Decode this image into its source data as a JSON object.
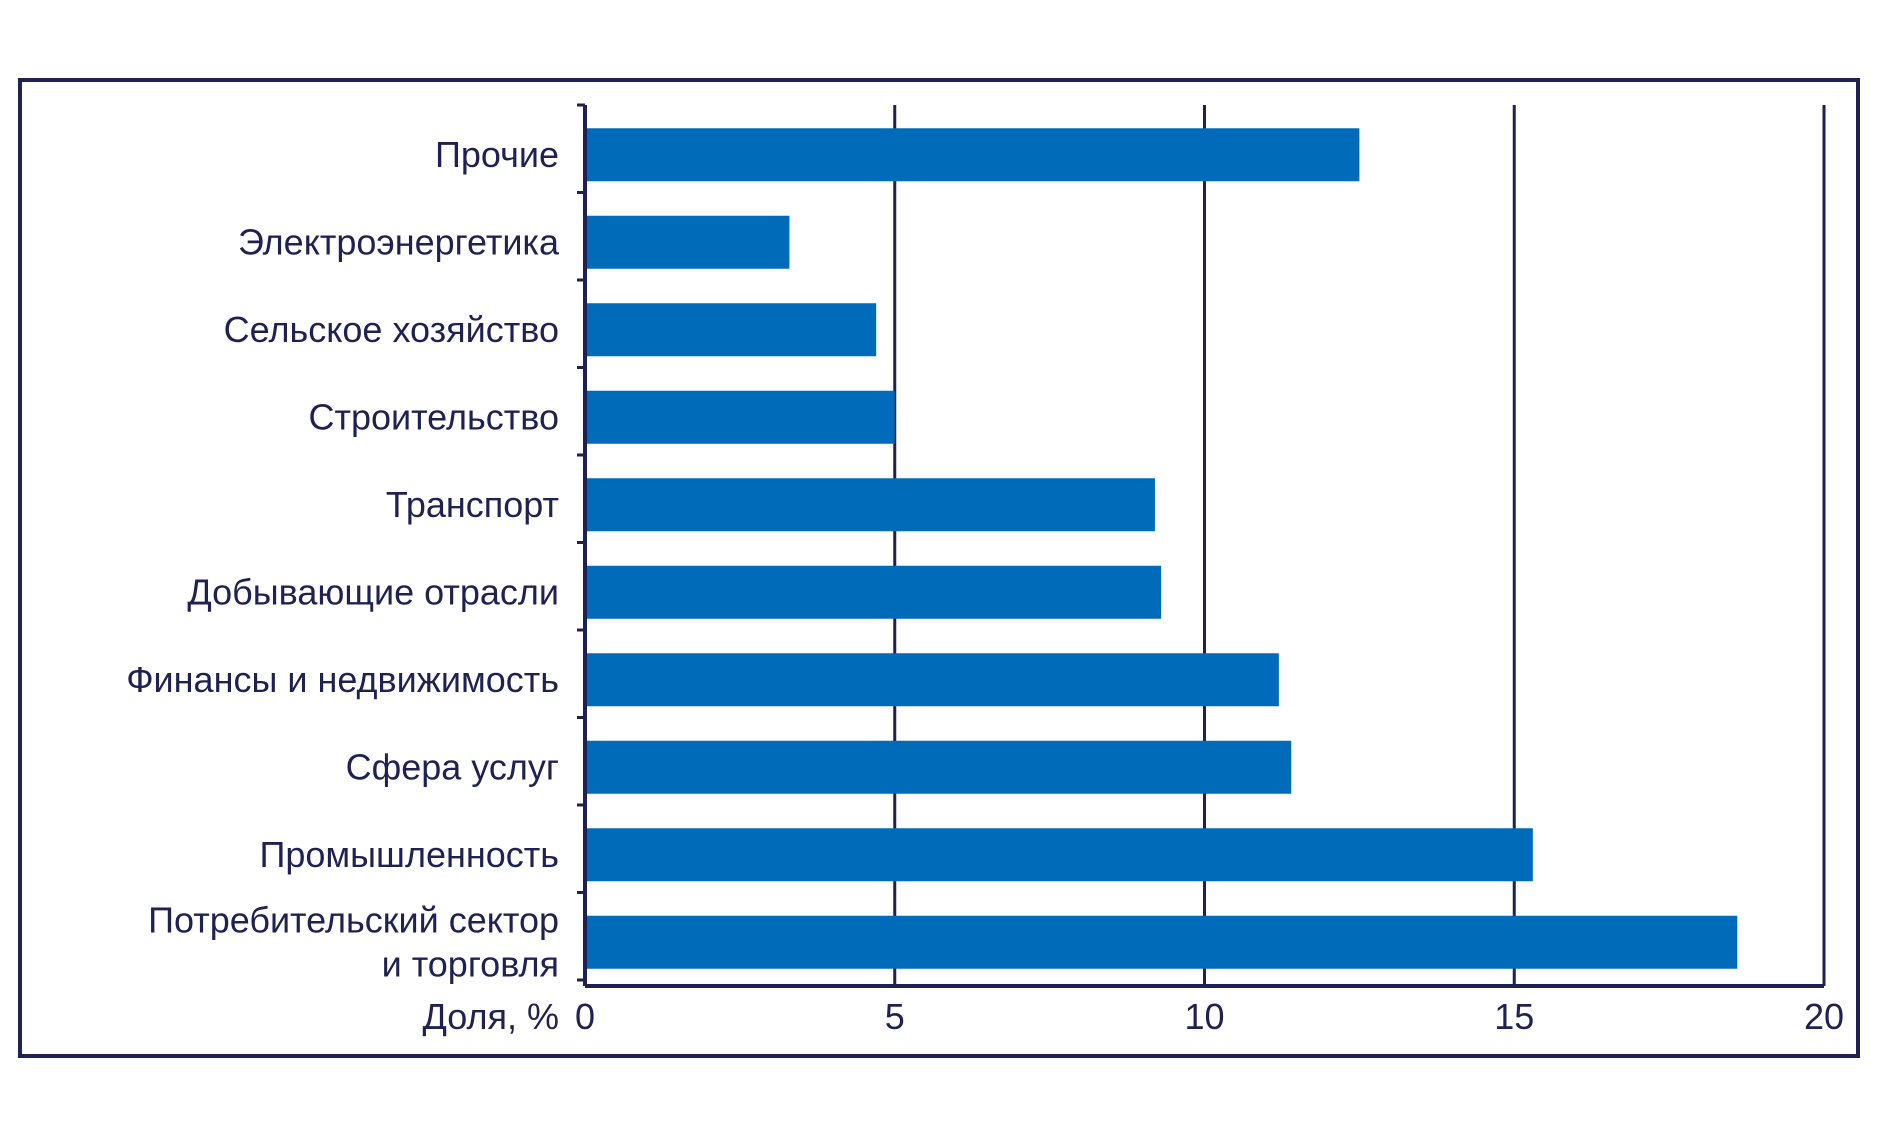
{
  "chart_data": {
    "type": "bar",
    "orientation": "horizontal",
    "categories": [
      "Прочие",
      "Электроэнергетика",
      "Сельское хозяйство",
      "Строительство",
      "Транспорт",
      "Добывающие отрасли",
      "Финансы и недвижимость",
      "Сфера услуг",
      "Промышленность",
      "Потребительский сектор\nи торговля"
    ],
    "values": [
      12.5,
      3.3,
      4.7,
      5.0,
      9.2,
      9.3,
      11.2,
      11.4,
      15.3,
      18.6
    ],
    "title": "",
    "xlabel": "Доля, %",
    "ylabel": "",
    "xlim": [
      0,
      20
    ],
    "xticks": [
      "0",
      "5",
      "10",
      "15",
      "20"
    ],
    "grid": "vertical",
    "legend": "none",
    "bar_color": "#006bb8",
    "axis_color": "#1f2152"
  }
}
